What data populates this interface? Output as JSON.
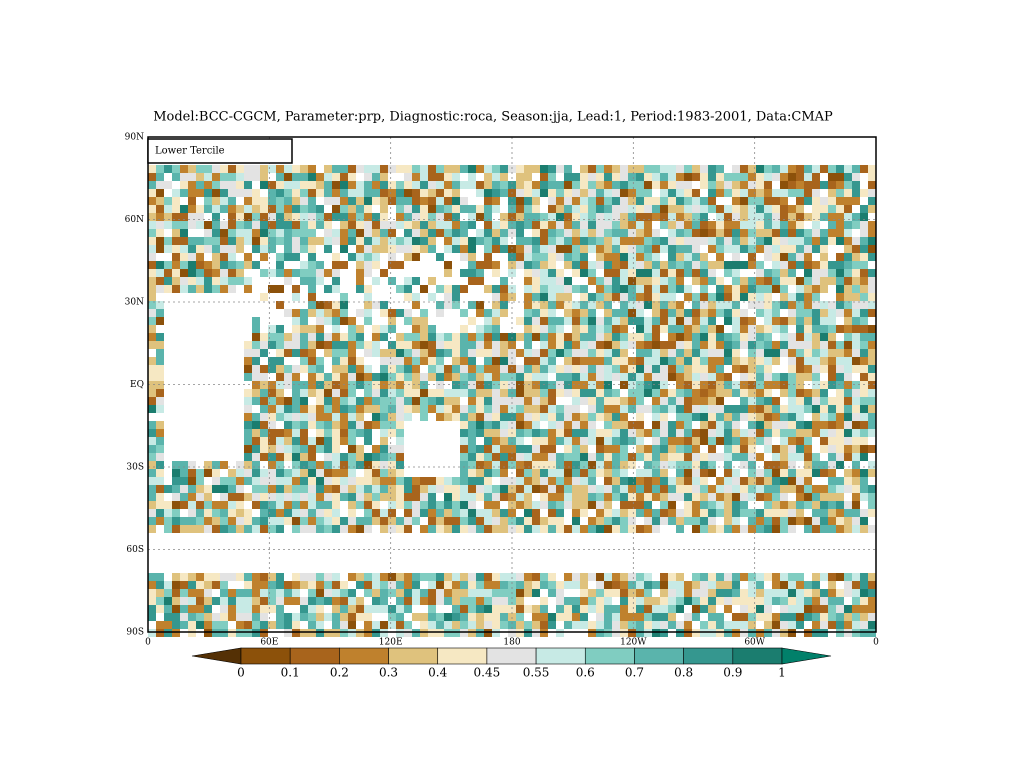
{
  "title": "Model:BCC-CGCM, Parameter:prp, Diagnostic:roca, Season:jja, Lead:1, Period:1983-2001, Data:CMAP",
  "legend_box": "Lower Tercile",
  "lat_labels": [
    "90N",
    "60N",
    "30N",
    "EQ",
    "30S",
    "60S",
    "90S"
  ],
  "lon_labels": [
    "0",
    "60E",
    "120E",
    "180",
    "120W",
    "60W",
    "0"
  ],
  "colorbar": {
    "levels": [
      0,
      0.1,
      0.2,
      0.3,
      0.4,
      0.45,
      0.55,
      0.6,
      0.7,
      0.8,
      0.9,
      1
    ],
    "colors": [
      "#543005",
      "#8c510a",
      "#a8641c",
      "#bf812d",
      "#dfc27d",
      "#f6e8c3",
      "#e3e3e3",
      "#c7eae5",
      "#80cdc1",
      "#5ab4ac",
      "#35978f",
      "#1b7d6f",
      "#01806a"
    ]
  }
}
